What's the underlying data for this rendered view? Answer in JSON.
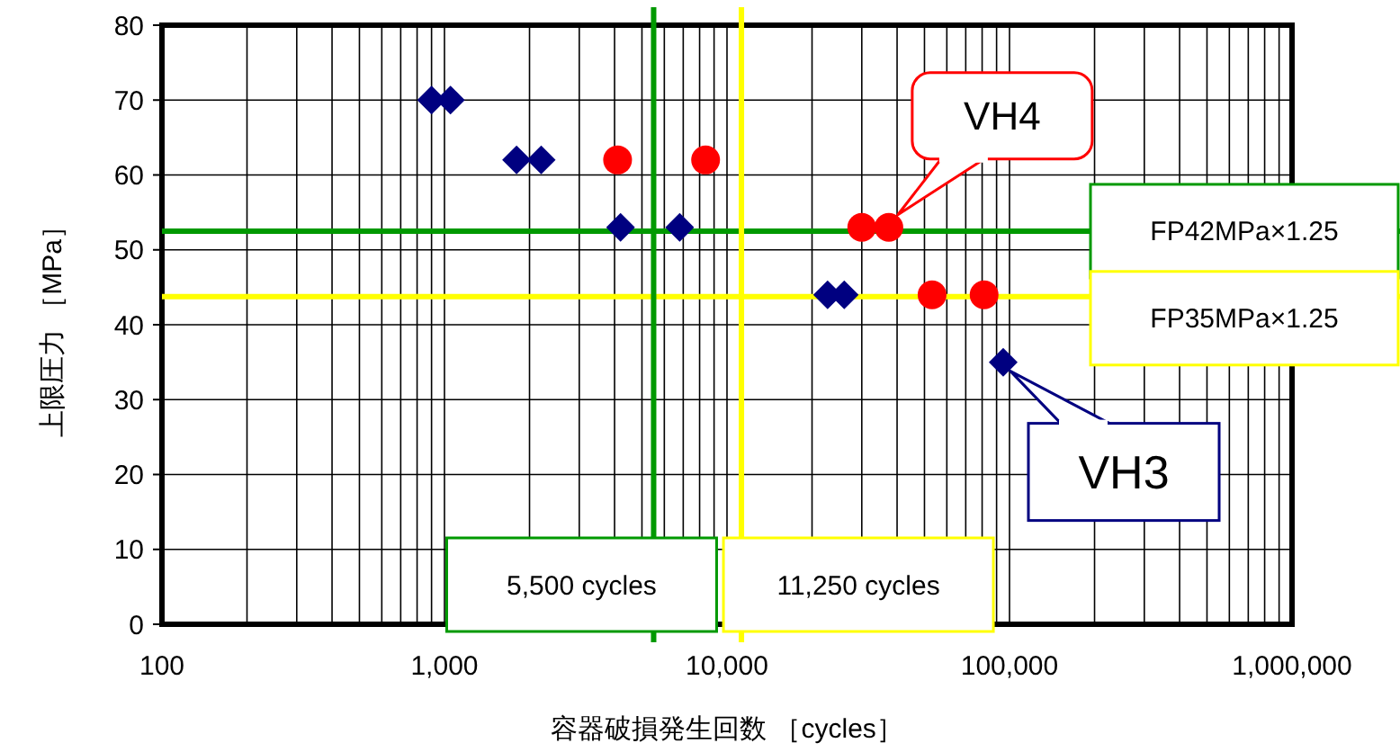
{
  "chart_data": {
    "type": "scatter",
    "xlabel": "容器破損発生回数 ［cycles］",
    "ylabel": "上限圧力 ［MPa］",
    "log": "x",
    "grid": true,
    "xlim": [
      100,
      1000000
    ],
    "xticks": [
      100,
      {
        "value": 1000,
        "label": "1,000"
      },
      {
        "value": 10000,
        "label": "10,000"
      },
      {
        "value": 100000,
        "label": "100,000"
      },
      {
        "value": 1000000,
        "label": "1,000,000"
      }
    ],
    "ylim": [
      0,
      80
    ],
    "yticks": [
      0,
      10,
      20,
      30,
      40,
      50,
      60,
      70,
      80
    ],
    "series": [
      {
        "color": "#000080",
        "marker": "diamond",
        "x": [
          900,
          1050,
          1800,
          2200,
          4200,
          6800,
          22700,
          26000,
          95000
        ],
        "values": [
          70,
          70,
          62,
          62,
          53,
          53,
          44,
          44,
          35
        ]
      },
      {
        "color": "#ff0000",
        "marker": "circle",
        "x": [
          4100,
          8400,
          30000,
          37400,
          53200,
          81300
        ],
        "values": [
          62,
          62,
          53,
          53,
          44,
          44
        ]
      }
    ],
    "ref_lines": [
      {
        "axis": "x",
        "value": 5500,
        "label": "5,500 cycles",
        "color": "#009900"
      },
      {
        "axis": "x",
        "value": 11250,
        "label": "11,250 cycles",
        "color": "#ffff00"
      },
      {
        "axis": "y",
        "value": 52.5,
        "label": "FP42MPa×1.25",
        "color": "#009900"
      },
      {
        "axis": "y",
        "value": 43.75,
        "label": "FP35MPa×1.25",
        "color": "#ffff00"
      }
    ],
    "annotations": [
      {
        "text": "VH4",
        "x": 37400,
        "y": 53
      },
      {
        "text": "VH3",
        "x": 95000,
        "y": 35
      }
    ]
  }
}
